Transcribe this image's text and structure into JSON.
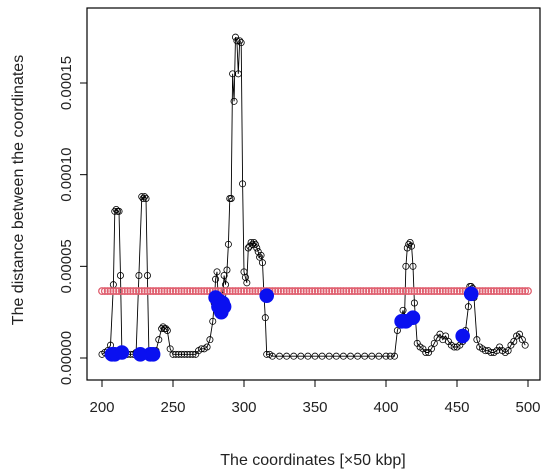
{
  "chart_data": {
    "type": "scatter",
    "title": "",
    "xlabel": "The coordinates [×50 kbp]",
    "ylabel": "The distance between the coordinates",
    "xlim": [
      200,
      500
    ],
    "ylim": [
      0,
      0.00018
    ],
    "xticks": [
      200,
      250,
      300,
      350,
      400,
      450,
      500
    ],
    "xtick_labels": [
      "200",
      "250",
      "300",
      "350",
      "400",
      "450",
      "500"
    ],
    "yticks": [
      0,
      5e-05,
      0.0001,
      0.00015
    ],
    "ytick_labels": [
      "0.00000",
      "0.00005",
      "0.00010",
      "0.00015"
    ],
    "grid": false,
    "legend": "none",
    "colors": {
      "series": "#000000",
      "threshold": "#e06070",
      "highlight": "#0a10f0"
    },
    "series": [
      {
        "kind": "line+points",
        "x": [
          200,
          202,
          204,
          206,
          208,
          209,
          210,
          211,
          212,
          213,
          214,
          216,
          218,
          220,
          222,
          224,
          226,
          228,
          229,
          230,
          231,
          232,
          233,
          234,
          235,
          236,
          238,
          240,
          242,
          243,
          244,
          245,
          246,
          248,
          250,
          252,
          254,
          256,
          258,
          260,
          262,
          264,
          266,
          268,
          270,
          272,
          274,
          276,
          278,
          279,
          280,
          281,
          282,
          283,
          284,
          285,
          286,
          287,
          288,
          289,
          290,
          291,
          292,
          293,
          294,
          295,
          296,
          297,
          298,
          299,
          300,
          301,
          302,
          303,
          304,
          305,
          306,
          307,
          308,
          309,
          310,
          311,
          312,
          313,
          314,
          315,
          316,
          318,
          320,
          325,
          330,
          335,
          340,
          345,
          350,
          355,
          360,
          365,
          370,
          375,
          380,
          385,
          390,
          395,
          400,
          403,
          406,
          408,
          410,
          412,
          413,
          414,
          415,
          416,
          417,
          418,
          419,
          420,
          422,
          424,
          426,
          428,
          430,
          432,
          434,
          436,
          438,
          440,
          442,
          444,
          446,
          448,
          450,
          452,
          454,
          456,
          458,
          459,
          460,
          461,
          462,
          464,
          466,
          468,
          470,
          472,
          474,
          476,
          478,
          480,
          482,
          484,
          486,
          488,
          490,
          492,
          494,
          496,
          498
        ],
        "y": [
          2e-06,
          3e-06,
          4e-06,
          7e-06,
          4e-05,
          8e-05,
          8.1e-05,
          8e-05,
          8e-05,
          4.5e-05,
          3e-06,
          2e-06,
          2e-06,
          2e-06,
          2e-06,
          3e-06,
          4.5e-05,
          8.8e-05,
          8.7e-05,
          8.8e-05,
          8.7e-05,
          4.5e-05,
          3e-06,
          2e-06,
          2e-06,
          3e-06,
          4e-06,
          1e-05,
          1.6e-05,
          1.7e-05,
          1.6e-05,
          1.6e-05,
          1.5e-05,
          5e-06,
          2e-06,
          2e-06,
          2e-06,
          2e-06,
          2e-06,
          2e-06,
          2e-06,
          2e-06,
          2e-06,
          4e-06,
          5e-06,
          5e-06,
          6e-06,
          1e-05,
          2e-05,
          3e-05,
          4.3e-05,
          4.7e-05,
          3e-05,
          2.5e-05,
          2.8e-05,
          3.4e-05,
          4.5e-05,
          4e-05,
          4.8e-05,
          6.2e-05,
          8.7e-05,
          8.7e-05,
          0.000155,
          0.00014,
          0.000175,
          0.000173,
          0.000155,
          0.000173,
          0.000172,
          9.5e-05,
          4.7e-05,
          4.4e-05,
          4.1e-05,
          6e-05,
          6.1e-05,
          6.3e-05,
          6.2e-05,
          6.3e-05,
          6.2e-05,
          6e-05,
          5.8e-05,
          5.5e-05,
          5.6e-05,
          5.2e-05,
          3.5e-05,
          2.2e-05,
          2e-06,
          2e-06,
          1e-06,
          1e-06,
          1e-06,
          1e-06,
          1e-06,
          1e-06,
          1e-06,
          1e-06,
          1e-06,
          1e-06,
          1e-06,
          1e-06,
          1e-06,
          1e-06,
          1e-06,
          1e-06,
          1e-06,
          1e-06,
          1e-06,
          1.5e-05,
          2e-05,
          2.6e-05,
          2.2e-05,
          5e-05,
          6e-05,
          6.2e-05,
          6.3e-05,
          6.1e-05,
          5e-05,
          3e-05,
          8e-06,
          6e-06,
          5e-06,
          3e-06,
          3e-06,
          5e-06,
          8e-06,
          1.1e-05,
          1.3e-05,
          1e-05,
          1.2e-05,
          9e-06,
          7e-06,
          6e-06,
          6e-06,
          7e-06,
          9e-06,
          1.5e-05,
          2.8e-05,
          3.9e-05,
          3.9e-05,
          3.8e-05,
          3.3e-05,
          1e-05,
          6e-06,
          5e-06,
          4e-06,
          4e-06,
          3e-06,
          3e-06,
          4e-06,
          6e-06,
          4e-06,
          3e-06,
          4e-06,
          7e-06,
          9e-06,
          1.2e-05,
          1.3e-05,
          1e-05,
          7e-06
        ]
      },
      {
        "kind": "threshold-points",
        "x": [
          200,
          202,
          204,
          206,
          208,
          210,
          212,
          214,
          216,
          218,
          220,
          222,
          224,
          226,
          228,
          230,
          232,
          234,
          236,
          238,
          240,
          242,
          244,
          246,
          248,
          250,
          252,
          254,
          256,
          258,
          260,
          262,
          264,
          266,
          268,
          270,
          272,
          274,
          276,
          278,
          280,
          282,
          284,
          286,
          288,
          290,
          292,
          294,
          296,
          298,
          300,
          302,
          304,
          306,
          308,
          310,
          312,
          314,
          316,
          318,
          320,
          322,
          324,
          326,
          328,
          330,
          332,
          334,
          336,
          338,
          340,
          342,
          344,
          346,
          348,
          350,
          352,
          354,
          356,
          358,
          360,
          362,
          364,
          366,
          368,
          370,
          372,
          374,
          376,
          378,
          380,
          382,
          384,
          386,
          388,
          390,
          392,
          394,
          396,
          398,
          400,
          402,
          404,
          406,
          408,
          410,
          412,
          414,
          416,
          418,
          420,
          422,
          424,
          426,
          428,
          430,
          432,
          434,
          436,
          438,
          440,
          442,
          444,
          446,
          448,
          450,
          452,
          454,
          456,
          458,
          460,
          462,
          464,
          466,
          468,
          470,
          472,
          474,
          476,
          478,
          480,
          482,
          484,
          486,
          488,
          490,
          492,
          494,
          496,
          498,
          500
        ],
        "y_constant": 3.65e-05
      },
      {
        "kind": "highlight-points",
        "x": [
          207,
          209,
          214,
          227,
          234,
          236,
          280,
          282,
          283,
          284,
          285,
          286,
          316,
          411,
          414,
          419,
          454,
          460
        ],
        "y": [
          2e-06,
          2e-06,
          3e-06,
          2e-06,
          2e-06,
          2e-06,
          3.3e-05,
          2.8e-05,
          3.1e-05,
          2.5e-05,
          3e-05,
          2.8e-05,
          3.4e-05,
          2e-05,
          2e-05,
          2.2e-05,
          1.2e-05,
          3.5e-05
        ]
      }
    ]
  }
}
